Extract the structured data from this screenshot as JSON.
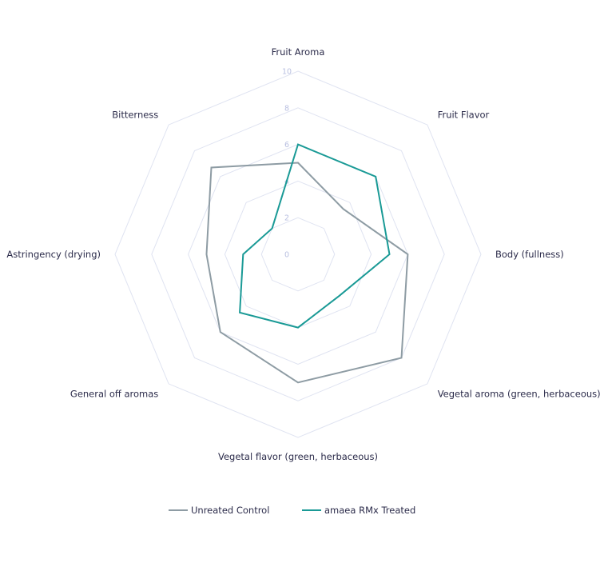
{
  "chart_data": {
    "type": "radar",
    "title": "",
    "axes": [
      "Fruit Aroma",
      "Fruit Flavor",
      "Body (fullness)",
      "Vegetal aroma (green, herbaceous)",
      "Vegetal flavor (green, herbaceous)",
      "General off aromas",
      "Astringency (drying)",
      "Bitterness"
    ],
    "r_ticks": [
      0,
      2,
      4,
      6,
      8,
      10
    ],
    "rlim": [
      0,
      10
    ],
    "grid": true,
    "legend_position": "bottom",
    "series": [
      {
        "name": "Unreated Control",
        "color": "#8e9ca4",
        "values": [
          5,
          3.5,
          6,
          8,
          7,
          6,
          5,
          6.7
        ]
      },
      {
        "name": "amaea RMx Treated",
        "color": "#1a9a96",
        "values": [
          6,
          6,
          5,
          3.2,
          4,
          4.5,
          3,
          2
        ]
      }
    ]
  }
}
